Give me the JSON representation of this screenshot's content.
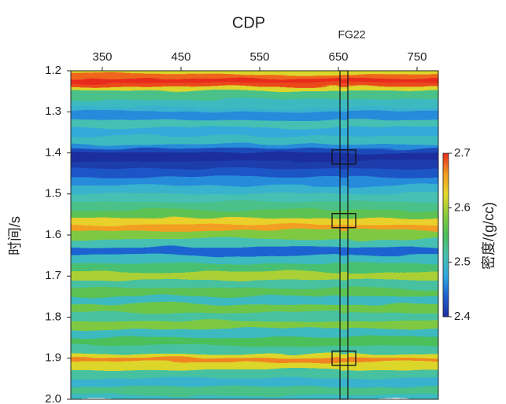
{
  "chart_data": {
    "type": "heatmap",
    "title": "CDP",
    "well_label": "FG22",
    "y_label": "时间/s",
    "colorbar_label": "密度/(g/cc)",
    "xlim": [
      310,
      777
    ],
    "xticks": [
      350,
      450,
      550,
      650,
      750
    ],
    "ylim": [
      1.2,
      2.0
    ],
    "yticks": [
      {
        "value": 1.2,
        "label": "1.2"
      },
      1.3,
      1.4,
      1.5,
      1.6,
      1.7,
      1.8,
      1.9,
      {
        "value": 2.0,
        "label": "2.0"
      }
    ],
    "clim": [
      2.4,
      2.7
    ],
    "cticks": [
      2.4,
      2.5,
      2.6,
      2.7
    ],
    "colorscale": [
      "#1a2f9e",
      "#1e5fd0",
      "#2fa8e0",
      "#45c2b0",
      "#4cbf5a",
      "#8ccc3c",
      "#e8d82a",
      "#f39a20",
      "#e82a1e"
    ],
    "well_cdp": 657,
    "highlight_times": [
      1.41,
      1.565,
      1.9
    ],
    "times": [
      1.2,
      1.21,
      1.22,
      1.23,
      1.24,
      1.25,
      1.27,
      1.29,
      1.3,
      1.32,
      1.34,
      1.36,
      1.38,
      1.39,
      1.4,
      1.42,
      1.44,
      1.46,
      1.48,
      1.5,
      1.52,
      1.54,
      1.56,
      1.575,
      1.59,
      1.61,
      1.63,
      1.65,
      1.67,
      1.69,
      1.71,
      1.73,
      1.75,
      1.77,
      1.79,
      1.81,
      1.83,
      1.85,
      1.87,
      1.89,
      1.9,
      1.91,
      1.93,
      1.95,
      1.97,
      1.99
    ],
    "values": [
      2.62,
      2.68,
      2.7,
      2.69,
      2.62,
      2.53,
      2.5,
      2.49,
      2.46,
      2.51,
      2.48,
      2.5,
      2.46,
      2.42,
      2.4,
      2.41,
      2.43,
      2.46,
      2.49,
      2.51,
      2.53,
      2.56,
      2.63,
      2.66,
      2.58,
      2.51,
      2.44,
      2.5,
      2.54,
      2.6,
      2.52,
      2.56,
      2.5,
      2.57,
      2.52,
      2.58,
      2.5,
      2.55,
      2.52,
      2.62,
      2.67,
      2.62,
      2.52,
      2.49,
      2.53,
      2.5
    ]
  }
}
